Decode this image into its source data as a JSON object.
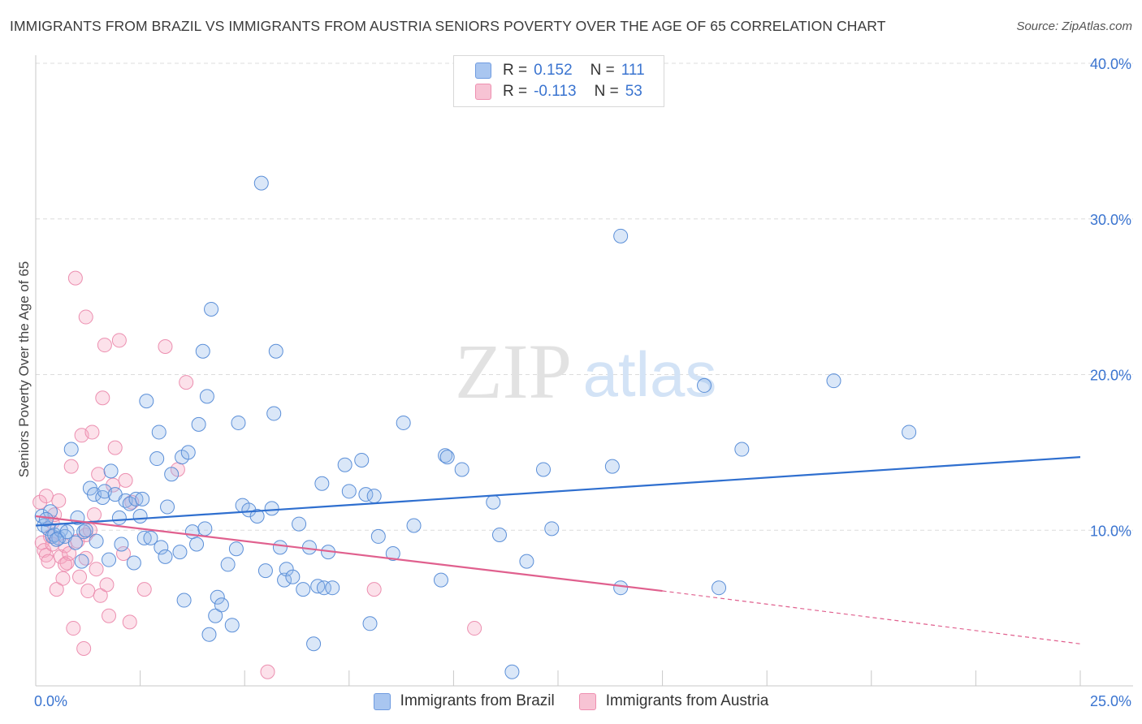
{
  "title": "IMMIGRANTS FROM BRAZIL VS IMMIGRANTS FROM AUSTRIA SENIORS POVERTY OVER THE AGE OF 65 CORRELATION CHART",
  "source": "Source: ZipAtlas.com",
  "watermark": {
    "zip": "ZIP",
    "atlas": "atlas"
  },
  "legend": {
    "r_label": "R =",
    "n_label": "N =",
    "rows": [
      {
        "r": "0.152",
        "n": "111",
        "color": "#a9c6f0",
        "border": "#6f9be0"
      },
      {
        "r": "-0.113",
        "n": "53",
        "color": "#f7c3d4",
        "border": "#ee8fb0"
      }
    ]
  },
  "bottom_legend": [
    "Immigrants from Brazil",
    "Immigrants from Austria"
  ],
  "colors": {
    "brazil_fill": "rgba(150,185,235,0.35)",
    "brazil_stroke": "#5b8fd8",
    "brazil_line": "#2f6fcf",
    "austria_fill": "rgba(245,170,195,0.35)",
    "austria_stroke": "#ec8fb0",
    "austria_line": "#e0608e",
    "tick_color": "#3a74d0",
    "grid": "#dcdcdc"
  },
  "chart_data": {
    "type": "scatter",
    "title": "IMMIGRANTS FROM BRAZIL VS IMMIGRANTS FROM AUSTRIA SENIORS POVERTY OVER THE AGE OF 65 CORRELATION CHART",
    "xlabel": "",
    "ylabel": "Seniors Poverty Over the Age of 65",
    "xlim": [
      0,
      25
    ],
    "ylim": [
      0,
      40
    ],
    "x_ticks": [
      {
        "value": 0,
        "label": "0.0%"
      },
      {
        "value": 25,
        "label": "25.0%"
      }
    ],
    "y_ticks": [
      {
        "value": 10,
        "label": "10.0%"
      },
      {
        "value": 20,
        "label": "20.0%"
      },
      {
        "value": 30,
        "label": "30.0%"
      },
      {
        "value": 40,
        "label": "40.0%"
      }
    ],
    "series": [
      {
        "name": "Immigrants from Brazil",
        "r": 0.152,
        "n": 111,
        "trend": {
          "x0": 0,
          "y0": 10.3,
          "x1": 25,
          "y1": 14.7
        },
        "points": [
          [
            0.15,
            10.9
          ],
          [
            0.2,
            10.3
          ],
          [
            0.3,
            10.1
          ],
          [
            0.35,
            11.2
          ],
          [
            0.4,
            9.6
          ],
          [
            0.45,
            9.7
          ],
          [
            0.55,
            9.5
          ],
          [
            0.6,
            10.0
          ],
          [
            0.7,
            9.6
          ],
          [
            0.75,
            9.9
          ],
          [
            0.85,
            15.2
          ],
          [
            0.95,
            9.2
          ],
          [
            1.0,
            10.8
          ],
          [
            1.1,
            8.0
          ],
          [
            1.15,
            9.9
          ],
          [
            1.3,
            12.7
          ],
          [
            1.4,
            12.3
          ],
          [
            1.45,
            9.3
          ],
          [
            1.6,
            12.1
          ],
          [
            1.65,
            12.5
          ],
          [
            1.75,
            8.1
          ],
          [
            1.8,
            13.8
          ],
          [
            1.9,
            12.3
          ],
          [
            2.0,
            10.8
          ],
          [
            2.05,
            9.1
          ],
          [
            2.15,
            11.9
          ],
          [
            2.25,
            11.7
          ],
          [
            2.35,
            7.9
          ],
          [
            2.4,
            12.0
          ],
          [
            2.5,
            10.9
          ],
          [
            2.55,
            12.0
          ],
          [
            2.6,
            9.5
          ],
          [
            2.65,
            18.3
          ],
          [
            2.75,
            9.5
          ],
          [
            2.9,
            14.6
          ],
          [
            2.95,
            16.3
          ],
          [
            3.0,
            8.9
          ],
          [
            3.1,
            8.3
          ],
          [
            3.15,
            11.5
          ],
          [
            3.25,
            13.6
          ],
          [
            3.45,
            8.6
          ],
          [
            3.5,
            14.7
          ],
          [
            3.55,
            5.5
          ],
          [
            3.65,
            15.0
          ],
          [
            3.75,
            9.9
          ],
          [
            3.85,
            9.1
          ],
          [
            3.9,
            16.8
          ],
          [
            4.0,
            21.5
          ],
          [
            4.05,
            10.1
          ],
          [
            4.1,
            18.6
          ],
          [
            4.15,
            3.3
          ],
          [
            4.2,
            24.2
          ],
          [
            4.3,
            4.5
          ],
          [
            4.35,
            5.7
          ],
          [
            4.45,
            5.2
          ],
          [
            4.6,
            7.8
          ],
          [
            4.7,
            3.9
          ],
          [
            4.8,
            8.8
          ],
          [
            4.85,
            16.9
          ],
          [
            4.95,
            11.6
          ],
          [
            5.1,
            11.3
          ],
          [
            5.3,
            10.9
          ],
          [
            5.4,
            32.3
          ],
          [
            5.5,
            7.4
          ],
          [
            5.65,
            11.4
          ],
          [
            5.7,
            17.5
          ],
          [
            5.75,
            21.5
          ],
          [
            5.85,
            8.9
          ],
          [
            5.95,
            6.8
          ],
          [
            6.0,
            7.5
          ],
          [
            6.15,
            7.0
          ],
          [
            6.3,
            10.4
          ],
          [
            6.4,
            6.2
          ],
          [
            6.55,
            8.9
          ],
          [
            6.65,
            2.7
          ],
          [
            6.75,
            6.4
          ],
          [
            6.85,
            13.0
          ],
          [
            6.9,
            6.3
          ],
          [
            7.1,
            6.3
          ],
          [
            7.0,
            8.6
          ],
          [
            7.4,
            14.2
          ],
          [
            7.5,
            12.5
          ],
          [
            7.8,
            14.5
          ],
          [
            7.9,
            12.3
          ],
          [
            8.0,
            4.0
          ],
          [
            8.1,
            12.2
          ],
          [
            8.2,
            9.6
          ],
          [
            8.55,
            8.5
          ],
          [
            8.8,
            16.9
          ],
          [
            9.05,
            10.3
          ],
          [
            9.7,
            6.8
          ],
          [
            9.8,
            14.8
          ],
          [
            9.85,
            14.7
          ],
          [
            10.2,
            13.9
          ],
          [
            10.95,
            11.8
          ],
          [
            11.1,
            9.7
          ],
          [
            11.4,
            0.9
          ],
          [
            11.75,
            8.0
          ],
          [
            12.15,
            13.9
          ],
          [
            12.35,
            10.1
          ],
          [
            13.8,
            14.1
          ],
          [
            14.0,
            28.9
          ],
          [
            14.0,
            6.3
          ],
          [
            16.0,
            19.3
          ],
          [
            16.35,
            6.3
          ],
          [
            16.9,
            15.2
          ],
          [
            19.1,
            19.6
          ],
          [
            20.9,
            16.3
          ],
          [
            0.25,
            10.7
          ],
          [
            0.5,
            9.4
          ],
          [
            1.2,
            10.0
          ]
        ]
      },
      {
        "name": "Immigrants from Austria",
        "r": -0.113,
        "n": 53,
        "trend": {
          "x0": 0,
          "y0": 10.9,
          "x1": 15,
          "y1": 6.1
        },
        "trend_dashed": {
          "x0": 15,
          "y0": 6.1,
          "x1": 25,
          "y1": 2.7
        },
        "points": [
          [
            0.1,
            11.8
          ],
          [
            0.15,
            9.2
          ],
          [
            0.2,
            8.7
          ],
          [
            0.25,
            8.4
          ],
          [
            0.3,
            8.0
          ],
          [
            0.35,
            9.6
          ],
          [
            0.4,
            10.5
          ],
          [
            0.45,
            11.0
          ],
          [
            0.5,
            6.2
          ],
          [
            0.55,
            11.9
          ],
          [
            0.6,
            8.3
          ],
          [
            0.65,
            6.9
          ],
          [
            0.7,
            9.0
          ],
          [
            0.75,
            7.9
          ],
          [
            0.8,
            8.5
          ],
          [
            0.85,
            14.1
          ],
          [
            0.9,
            3.7
          ],
          [
            0.95,
            26.2
          ],
          [
            1.0,
            9.3
          ],
          [
            1.05,
            7.0
          ],
          [
            1.1,
            16.1
          ],
          [
            1.15,
            2.4
          ],
          [
            1.2,
            9.7
          ],
          [
            1.25,
            6.1
          ],
          [
            1.3,
            10.0
          ],
          [
            1.2,
            23.7
          ],
          [
            1.35,
            16.3
          ],
          [
            1.4,
            11.0
          ],
          [
            1.45,
            7.5
          ],
          [
            1.5,
            13.6
          ],
          [
            1.55,
            5.8
          ],
          [
            1.6,
            18.5
          ],
          [
            1.65,
            21.9
          ],
          [
            1.7,
            6.5
          ],
          [
            1.75,
            4.5
          ],
          [
            1.85,
            12.9
          ],
          [
            1.9,
            15.3
          ],
          [
            2.0,
            22.2
          ],
          [
            2.1,
            8.5
          ],
          [
            2.15,
            13.2
          ],
          [
            2.25,
            4.1
          ],
          [
            2.3,
            11.8
          ],
          [
            2.6,
            6.2
          ],
          [
            3.1,
            21.8
          ],
          [
            3.4,
            13.9
          ],
          [
            3.6,
            19.5
          ],
          [
            5.55,
            0.9
          ],
          [
            8.1,
            6.2
          ],
          [
            10.5,
            3.7
          ],
          [
            0.7,
            7.8
          ],
          [
            1.2,
            8.2
          ],
          [
            0.4,
            9.1
          ],
          [
            0.25,
            12.2
          ]
        ]
      }
    ]
  }
}
